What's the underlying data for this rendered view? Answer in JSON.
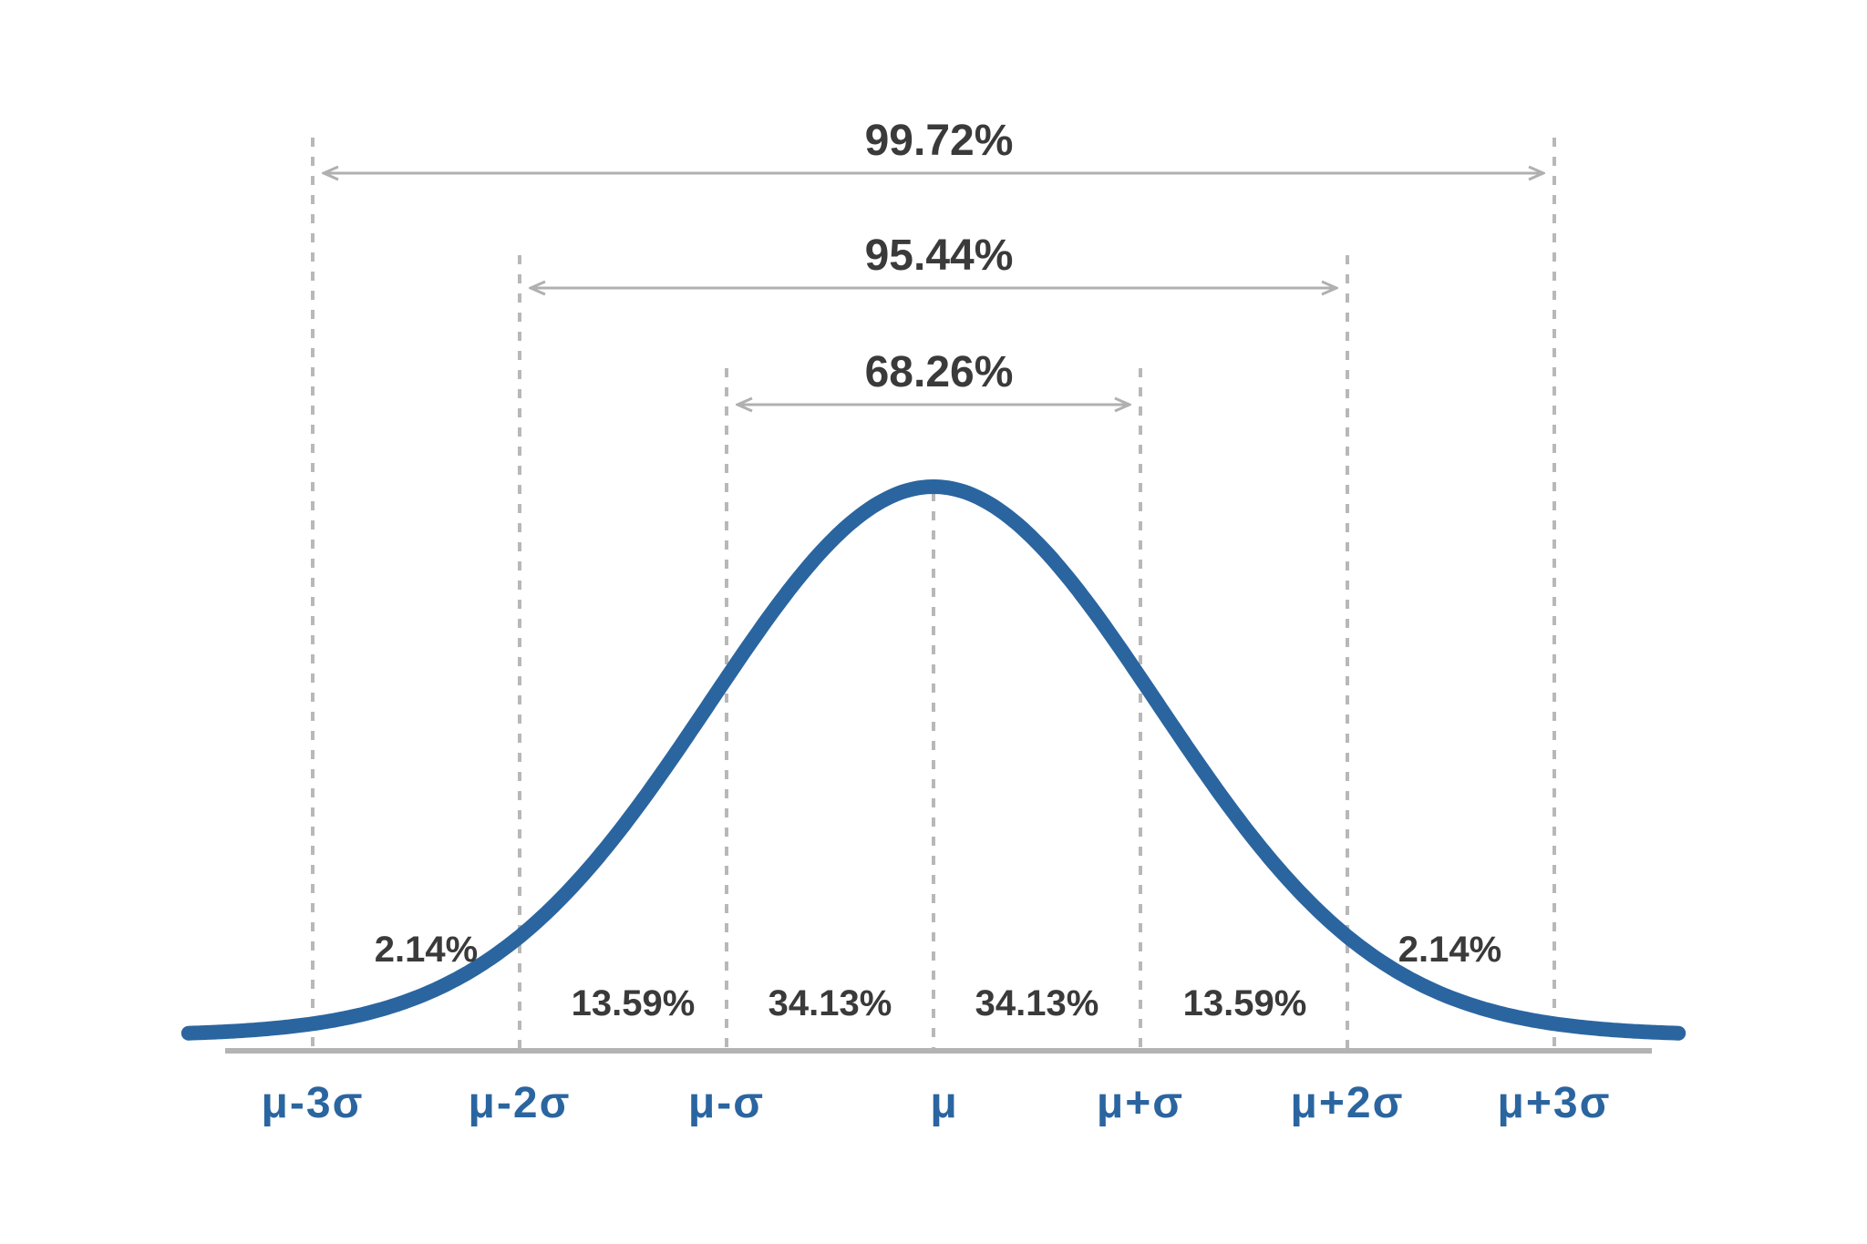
{
  "chart_data": {
    "type": "line",
    "title": "",
    "xlabel": "",
    "ylabel": "",
    "distribution": "normal",
    "xlim_sigma": [
      -3.6,
      3.6
    ],
    "grid": false,
    "legend": "none",
    "tick_labels": [
      "μ-3σ",
      "μ-2σ",
      "μ-σ",
      "μ",
      "μ+σ",
      "μ+2σ",
      "μ+3σ"
    ],
    "tick_positions_sigma": [
      -3,
      -2,
      -1,
      0,
      1,
      2,
      3
    ],
    "regions": [
      {
        "from": -3,
        "to": -2,
        "label": "2.14%",
        "value": 2.14
      },
      {
        "from": -2,
        "to": -1,
        "label": "13.59%",
        "value": 13.59
      },
      {
        "from": -1,
        "to": 0,
        "label": "34.13%",
        "value": 34.13
      },
      {
        "from": 0,
        "to": 1,
        "label": "34.13%",
        "value": 34.13
      },
      {
        "from": 1,
        "to": 2,
        "label": "13.59%",
        "value": 13.59
      },
      {
        "from": 2,
        "to": 3,
        "label": "2.14%",
        "value": 2.14
      }
    ],
    "ranges": [
      {
        "from": -1,
        "to": 1,
        "label": "68.26%",
        "value": 68.26
      },
      {
        "from": -2,
        "to": 2,
        "label": "95.44%",
        "value": 95.44
      },
      {
        "from": -3,
        "to": 3,
        "label": "99.72%",
        "value": 99.72
      }
    ],
    "colors": {
      "curve": "#2a65a0",
      "tick_labels": "#2a65a0",
      "percent_labels": "#3a3a3a",
      "guides": "#b8b8b8",
      "axis": "#b3b3b3"
    }
  }
}
